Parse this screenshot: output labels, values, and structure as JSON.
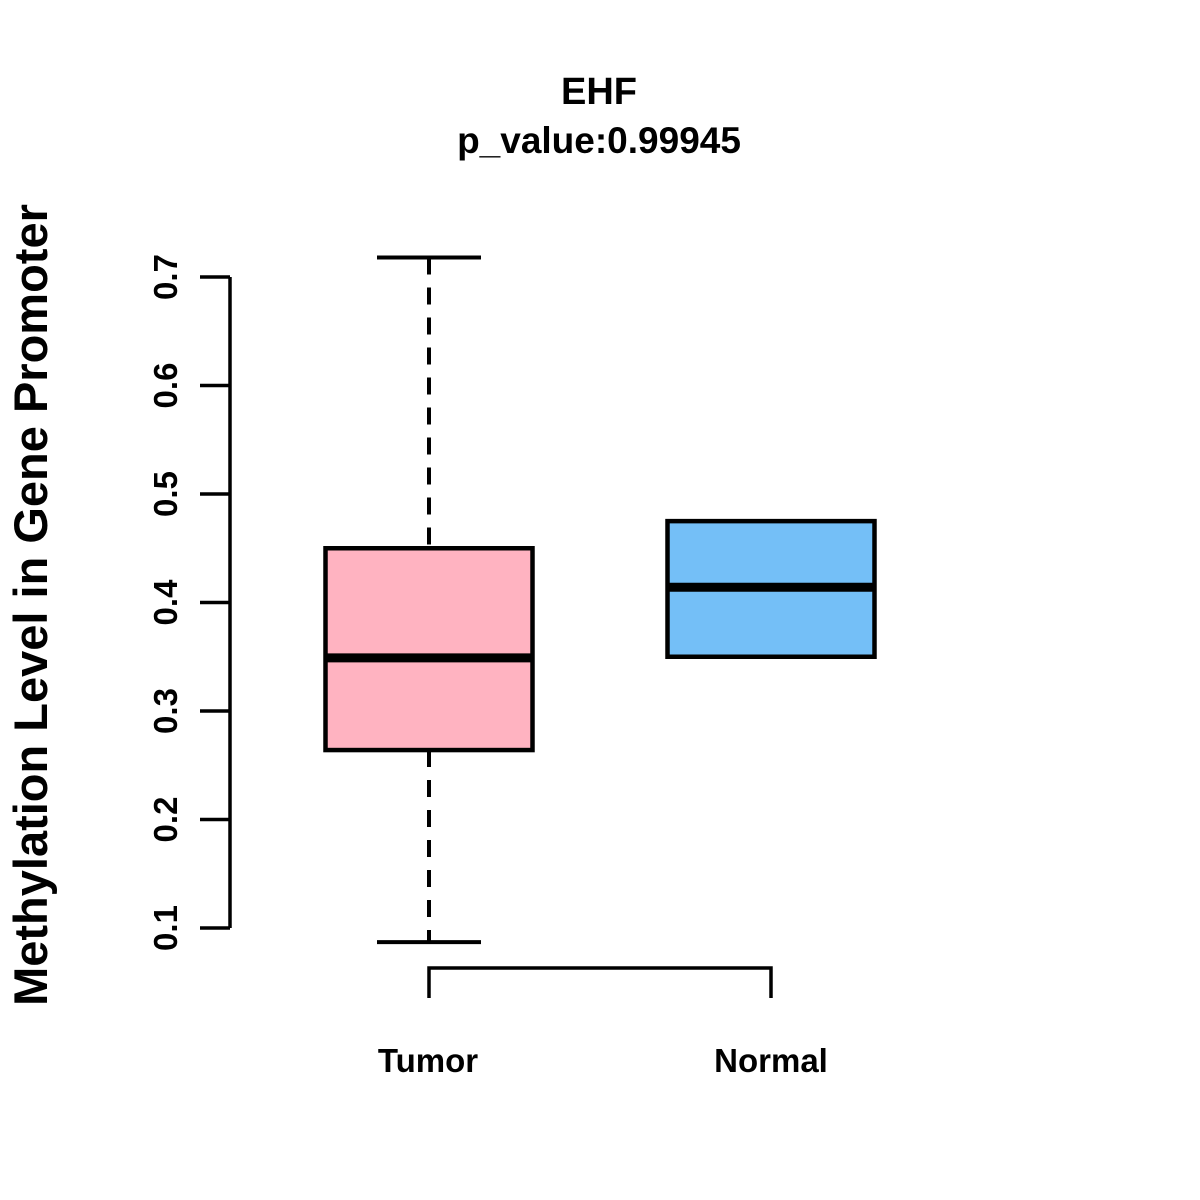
{
  "page": {
    "background_color": "#FFFFFF"
  },
  "chart_data": {
    "type": "boxplot",
    "title": "EHF",
    "subtitle": "p_value:0.99945",
    "ylabel": "Methylation Level in Gene Promoter",
    "xlabel": "",
    "categories": [
      "Tumor",
      "Normal"
    ],
    "ylim": [
      0.1,
      0.7
    ],
    "yticks": [
      0.1,
      0.2,
      0.3,
      0.4,
      0.5,
      0.6,
      0.7
    ],
    "ytick_labels": [
      "0.1",
      "0.2",
      "0.3",
      "0.4",
      "0.5",
      "0.6",
      "0.7"
    ],
    "grid": false,
    "legend": "none",
    "series": [
      {
        "name": "Tumor",
        "lower_whisker": 0.087,
        "q1": 0.264,
        "median": 0.349,
        "q3": 0.45,
        "upper_whisker": 0.718,
        "fill_color": "#FFB3C1"
      },
      {
        "name": "Normal",
        "lower_whisker": 0.35,
        "q1": 0.35,
        "median": 0.414,
        "q3": 0.475,
        "upper_whisker": 0.475,
        "fill_color": "#74BFF7"
      }
    ],
    "colors": {
      "box_border": "#000000",
      "median_line": "#000000",
      "whisker": "#000000",
      "axis": "#000000"
    }
  }
}
